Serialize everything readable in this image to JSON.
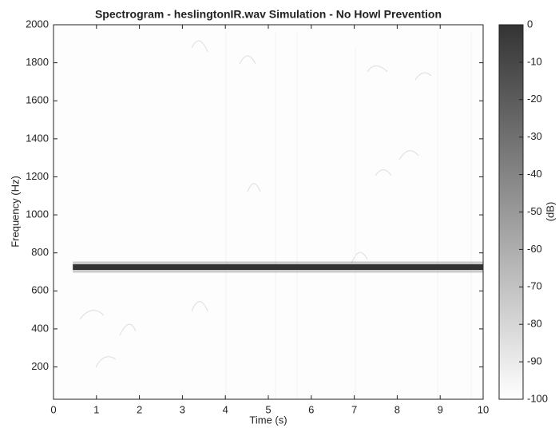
{
  "chart_data": {
    "type": "spectrogram",
    "title": "Spectrogram - heslingtonIR.wav Simulation - No Howl Prevention",
    "xlabel": "Time (s)",
    "ylabel": "Frequency (Hz)",
    "colorbar_label": "(dB)",
    "xlim": [
      0,
      10
    ],
    "ylim": [
      30,
      2000
    ],
    "xticks": [
      0,
      1,
      2,
      3,
      4,
      5,
      6,
      7,
      8,
      9,
      10
    ],
    "yticks": [
      200,
      400,
      600,
      800,
      1000,
      1200,
      1400,
      1600,
      1800,
      2000
    ],
    "clim": [
      -100,
      0
    ],
    "cticks": [
      -100,
      -90,
      -80,
      -70,
      -60,
      -50,
      -40,
      -30,
      -20,
      -10,
      0
    ],
    "colormap": [
      "#ffffff",
      "#333333"
    ],
    "series": [
      {
        "x": [
          0.45,
          1.6,
          3,
          10
        ],
        "values": [
          725,
          725,
          725,
          725
        ],
        "color": "#333333"
      }
    ]
  }
}
